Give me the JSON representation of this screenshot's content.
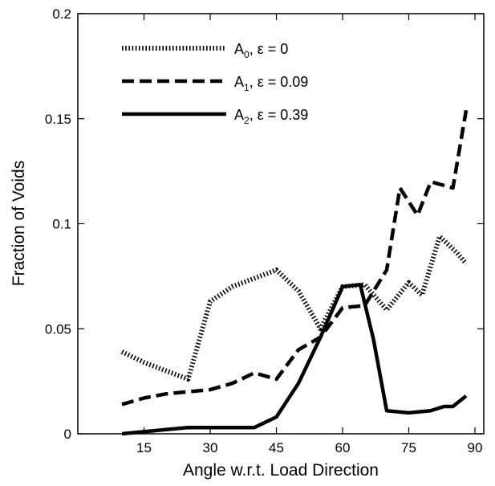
{
  "chart_data": {
    "type": "line",
    "title": "",
    "xlabel": "Angle w.r.t. Load Direction",
    "ylabel": "Fraction of Voids",
    "xlim": [
      0,
      92
    ],
    "ylim": [
      0,
      0.2
    ],
    "x_ticks": [
      15,
      30,
      45,
      60,
      75,
      90
    ],
    "y_ticks": [
      0,
      0.05,
      0.1,
      0.15,
      0.2
    ],
    "x_tick_labels": [
      "15",
      "30",
      "45",
      "60",
      "75",
      "90"
    ],
    "y_tick_labels": [
      "0",
      "0.05",
      "0.1",
      "0.15",
      "0.2"
    ],
    "grid": false,
    "legend_position": "top-left",
    "series": [
      {
        "name_main": "A",
        "name_sub": "0",
        "name_rest": ", ε = 0",
        "style": "dotted",
        "color": "#000000",
        "x": [
          10,
          15,
          20,
          25,
          30,
          35,
          40,
          45,
          50,
          55,
          60,
          65,
          70,
          75,
          78,
          82,
          86,
          88
        ],
        "y": [
          0.039,
          0.034,
          0.03,
          0.026,
          0.063,
          0.07,
          0.074,
          0.078,
          0.068,
          0.05,
          0.07,
          0.071,
          0.059,
          0.072,
          0.066,
          0.094,
          0.086,
          0.081
        ]
      },
      {
        "name_main": "A",
        "name_sub": "1",
        "name_rest": ", ε = 0.09",
        "style": "dashed",
        "color": "#000000",
        "x": [
          10,
          15,
          20,
          25,
          30,
          35,
          40,
          45,
          50,
          55,
          60,
          65,
          70,
          73,
          77,
          80,
          85,
          88
        ],
        "y": [
          0.014,
          0.017,
          0.019,
          0.02,
          0.021,
          0.024,
          0.029,
          0.026,
          0.04,
          0.046,
          0.06,
          0.061,
          0.078,
          0.117,
          0.104,
          0.12,
          0.117,
          0.154
        ]
      },
      {
        "name_main": "A",
        "name_sub": "2",
        "name_rest": ", ε = 0.39",
        "style": "solid",
        "color": "#000000",
        "x": [
          10,
          15,
          20,
          25,
          30,
          35,
          40,
          45,
          50,
          55,
          60,
          64,
          67,
          70,
          75,
          80,
          83,
          85,
          88
        ],
        "y": [
          0,
          0.001,
          0.002,
          0.003,
          0.003,
          0.003,
          0.003,
          0.008,
          0.024,
          0.046,
          0.07,
          0.071,
          0.045,
          0.011,
          0.01,
          0.011,
          0.013,
          0.013,
          0.018
        ]
      }
    ]
  }
}
